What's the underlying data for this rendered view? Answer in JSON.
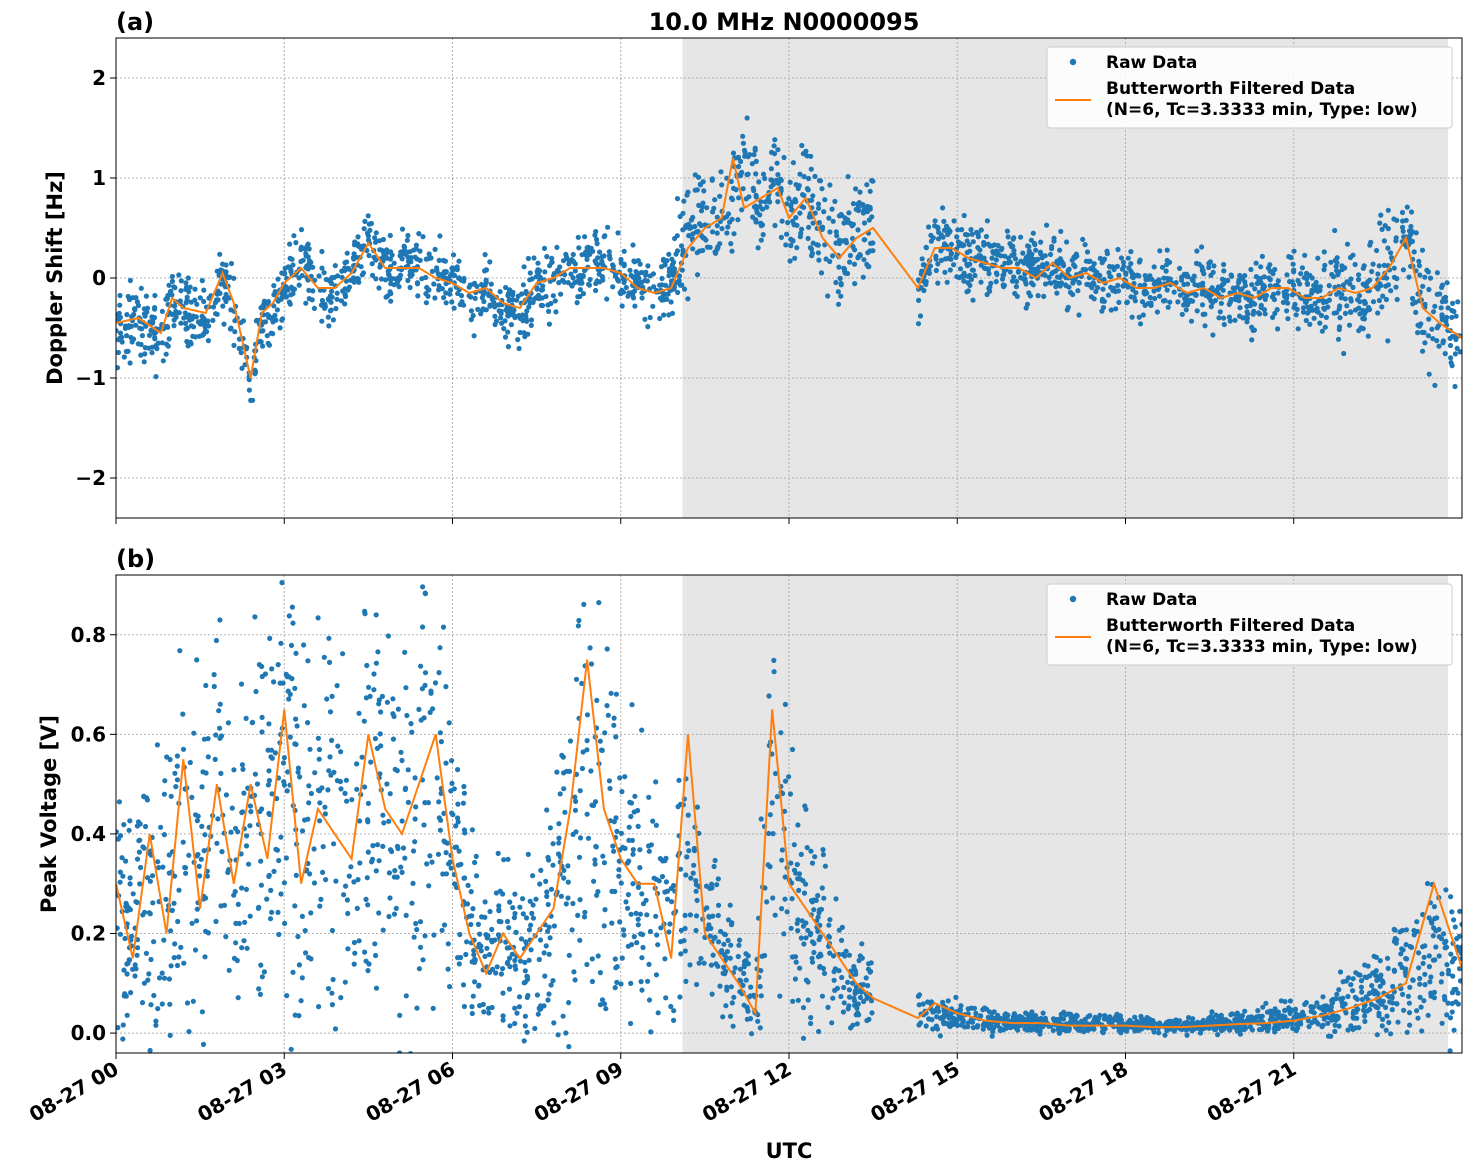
{
  "colors": {
    "raw": "#1f77b4",
    "filtered": "#ff7f0e",
    "shade": "#e6e6e6",
    "grid": "#b0b0b0"
  },
  "figure": {
    "title": "10.0 MHz N0000095",
    "xlabel": "UTC"
  },
  "x_ticks": [
    "08-27 00",
    "08-27 03",
    "08-27 06",
    "08-27 09",
    "08-27 12",
    "08-27 15",
    "08-27 18",
    "08-27 21"
  ],
  "chart_data": [
    {
      "type": "scatter",
      "panel_label": "(a)",
      "title": "10.0 MHz N0000095",
      "xlabel": "",
      "ylabel": "Doppler Shift [Hz]",
      "x_unit": "hours UTC on 08-27",
      "xlim": [
        0,
        24
      ],
      "ylim": [
        -2.4,
        2.4
      ],
      "y_ticks": [
        -2,
        -1,
        0,
        1,
        2
      ],
      "y_tick_labels": [
        "−2",
        "−1",
        "0",
        "1",
        "2"
      ],
      "grid": true,
      "legend_position": "top-right",
      "shaded_region": {
        "x_start": 10.1,
        "x_end": 23.75
      },
      "series": [
        {
          "name": "Raw Data",
          "kind": "points",
          "x": [
            0,
            0.4,
            0.8,
            1.0,
            1.2,
            1.6,
            1.9,
            2.1,
            2.4,
            2.6,
            2.8,
            3.0,
            3.3,
            3.6,
            3.9,
            4.2,
            4.5,
            4.8,
            5.1,
            5.4,
            5.7,
            6.0,
            6.3,
            6.6,
            6.9,
            7.2,
            7.5,
            7.8,
            8.1,
            8.4,
            8.7,
            9.0,
            9.3,
            9.6,
            9.9,
            10.2,
            10.5,
            10.8,
            11.0,
            11.2,
            11.5,
            11.8,
            12.0,
            12.3,
            12.6,
            12.9,
            13.2,
            13.5,
            14.3,
            14.6,
            14.9,
            15.2,
            15.5,
            15.8,
            16.1,
            16.4,
            16.7,
            17.0,
            17.3,
            17.6,
            17.9,
            18.2,
            18.5,
            18.8,
            19.1,
            19.4,
            19.7,
            20.0,
            20.3,
            20.6,
            20.9,
            21.2,
            21.5,
            21.8,
            22.1,
            22.4,
            22.7,
            23.0,
            23.3,
            23.6,
            24.0
          ],
          "y": [
            -0.5,
            -0.45,
            -0.6,
            -0.2,
            -0.3,
            -0.4,
            0.0,
            -0.3,
            -1.0,
            -0.4,
            -0.3,
            -0.1,
            0.1,
            -0.1,
            -0.15,
            0.05,
            0.35,
            0.1,
            0.15,
            0.1,
            0.0,
            -0.05,
            -0.2,
            -0.1,
            -0.3,
            -0.35,
            -0.1,
            0.0,
            0.15,
            0.1,
            0.15,
            0.05,
            -0.1,
            -0.15,
            0.0,
            0.4,
            0.6,
            0.5,
            0.8,
            1.2,
            0.75,
            0.9,
            0.6,
            0.8,
            0.5,
            0.2,
            0.5,
            0.55,
            -0.1,
            0.3,
            0.35,
            0.2,
            0.2,
            0.1,
            0.15,
            0.05,
            0.2,
            0.0,
            0.1,
            -0.05,
            0.0,
            -0.1,
            -0.1,
            -0.05,
            -0.15,
            -0.1,
            -0.2,
            -0.15,
            -0.2,
            -0.1,
            -0.1,
            -0.2,
            -0.25,
            -0.1,
            -0.2,
            -0.1,
            0.1,
            0.4,
            -0.3,
            -0.4,
            -0.6
          ]
        },
        {
          "name": "Butterworth Filtered Data\n(N=6, Tc=3.3333 min, Type: low)",
          "kind": "line",
          "x": [
            0,
            0.4,
            0.8,
            1.0,
            1.2,
            1.6,
            1.9,
            2.1,
            2.4,
            2.6,
            2.8,
            3.0,
            3.3,
            3.6,
            3.9,
            4.2,
            4.5,
            4.8,
            5.1,
            5.4,
            5.7,
            6.0,
            6.3,
            6.6,
            6.9,
            7.2,
            7.5,
            7.8,
            8.1,
            8.4,
            8.7,
            9.0,
            9.3,
            9.6,
            9.9,
            10.2,
            10.5,
            10.8,
            11.0,
            11.2,
            11.5,
            11.8,
            12.0,
            12.3,
            12.6,
            12.9,
            13.2,
            13.5,
            14.3,
            14.6,
            14.9,
            15.2,
            15.5,
            15.8,
            16.1,
            16.4,
            16.7,
            17.0,
            17.3,
            17.6,
            17.9,
            18.2,
            18.5,
            18.8,
            19.1,
            19.4,
            19.7,
            20.0,
            20.3,
            20.6,
            20.9,
            21.2,
            21.5,
            21.8,
            22.1,
            22.4,
            22.7,
            23.0,
            23.3,
            23.6,
            24.0
          ],
          "y": [
            -0.45,
            -0.4,
            -0.55,
            -0.2,
            -0.3,
            -0.35,
            0.05,
            -0.25,
            -1.0,
            -0.35,
            -0.25,
            -0.05,
            0.1,
            -0.1,
            -0.1,
            0.05,
            0.35,
            0.1,
            0.1,
            0.1,
            0.0,
            -0.05,
            -0.15,
            -0.1,
            -0.25,
            -0.3,
            -0.05,
            0.0,
            0.1,
            0.1,
            0.1,
            0.05,
            -0.1,
            -0.15,
            -0.1,
            0.3,
            0.5,
            0.6,
            1.2,
            0.7,
            0.8,
            0.9,
            0.6,
            0.8,
            0.4,
            0.2,
            0.4,
            0.5,
            -0.1,
            0.3,
            0.3,
            0.2,
            0.15,
            0.1,
            0.1,
            0.0,
            0.15,
            0.0,
            0.05,
            -0.05,
            0.0,
            -0.1,
            -0.1,
            -0.05,
            -0.15,
            -0.1,
            -0.2,
            -0.15,
            -0.2,
            -0.1,
            -0.1,
            -0.2,
            -0.2,
            -0.1,
            -0.15,
            -0.1,
            0.1,
            0.4,
            -0.3,
            -0.45,
            -0.6
          ]
        }
      ]
    },
    {
      "type": "scatter",
      "panel_label": "(b)",
      "xlabel": "UTC",
      "ylabel": "Peak Voltage [V]",
      "x_unit": "hours UTC on 08-27",
      "xlim": [
        0,
        24
      ],
      "ylim": [
        -0.04,
        0.92
      ],
      "y_ticks": [
        0.0,
        0.2,
        0.4,
        0.6,
        0.8
      ],
      "y_tick_labels": [
        "0.0",
        "0.2",
        "0.4",
        "0.6",
        "0.8"
      ],
      "grid": true,
      "legend_position": "top-right",
      "shaded_region": {
        "x_start": 10.1,
        "x_end": 23.75
      },
      "series": [
        {
          "name": "Raw Data",
          "kind": "points",
          "x": [
            0,
            0.3,
            0.6,
            0.9,
            1.2,
            1.5,
            1.8,
            2.1,
            2.4,
            2.7,
            3.0,
            3.3,
            3.6,
            3.9,
            4.2,
            4.5,
            4.8,
            5.1,
            5.4,
            5.7,
            6.0,
            6.3,
            6.6,
            6.9,
            7.2,
            7.5,
            7.8,
            8.1,
            8.4,
            8.7,
            9.0,
            9.3,
            9.6,
            9.9,
            10.2,
            10.5,
            10.8,
            11.1,
            11.4,
            11.7,
            12.0,
            12.3,
            12.6,
            12.9,
            13.2,
            13.5,
            14.3,
            14.6,
            15.0,
            15.5,
            16.0,
            16.5,
            17.0,
            17.5,
            18.0,
            18.5,
            19.0,
            19.5,
            20.0,
            20.5,
            21.0,
            21.5,
            22.0,
            22.5,
            23.0,
            23.5,
            24.0
          ],
          "y": [
            0.25,
            0.2,
            0.3,
            0.25,
            0.4,
            0.3,
            0.45,
            0.3,
            0.45,
            0.4,
            0.5,
            0.35,
            0.45,
            0.4,
            0.4,
            0.55,
            0.5,
            0.45,
            0.5,
            0.45,
            0.35,
            0.2,
            0.15,
            0.2,
            0.15,
            0.2,
            0.25,
            0.4,
            0.55,
            0.45,
            0.35,
            0.3,
            0.3,
            0.2,
            0.3,
            0.2,
            0.15,
            0.12,
            0.05,
            0.55,
            0.3,
            0.25,
            0.2,
            0.15,
            0.1,
            0.08,
            0.04,
            0.04,
            0.03,
            0.025,
            0.02,
            0.02,
            0.02,
            0.02,
            0.02,
            0.015,
            0.015,
            0.02,
            0.02,
            0.025,
            0.03,
            0.04,
            0.06,
            0.08,
            0.12,
            0.15,
            0.13
          ]
        },
        {
          "name": "Butterworth Filtered Data\n(N=6, Tc=3.3333 min, Type: low)",
          "kind": "line",
          "x": [
            0,
            0.3,
            0.6,
            0.9,
            1.2,
            1.5,
            1.8,
            2.1,
            2.4,
            2.7,
            3.0,
            3.3,
            3.6,
            3.9,
            4.2,
            4.5,
            4.8,
            5.1,
            5.4,
            5.7,
            6.0,
            6.3,
            6.6,
            6.9,
            7.2,
            7.5,
            7.8,
            8.1,
            8.4,
            8.7,
            9.0,
            9.3,
            9.6,
            9.9,
            10.2,
            10.5,
            10.8,
            11.1,
            11.4,
            11.7,
            12.0,
            12.3,
            12.6,
            12.9,
            13.2,
            13.5,
            14.3,
            14.6,
            15.0,
            15.5,
            16.0,
            16.5,
            17.0,
            17.5,
            18.0,
            18.5,
            19.0,
            19.5,
            20.0,
            20.5,
            21.0,
            21.5,
            22.0,
            22.5,
            23.0,
            23.5,
            24.0
          ],
          "y": [
            0.3,
            0.15,
            0.4,
            0.2,
            0.55,
            0.25,
            0.5,
            0.3,
            0.5,
            0.35,
            0.65,
            0.3,
            0.45,
            0.4,
            0.35,
            0.6,
            0.45,
            0.4,
            0.5,
            0.6,
            0.35,
            0.2,
            0.12,
            0.2,
            0.15,
            0.2,
            0.25,
            0.45,
            0.75,
            0.45,
            0.35,
            0.3,
            0.3,
            0.15,
            0.6,
            0.2,
            0.15,
            0.1,
            0.04,
            0.65,
            0.3,
            0.25,
            0.2,
            0.15,
            0.1,
            0.07,
            0.03,
            0.06,
            0.04,
            0.025,
            0.02,
            0.02,
            0.015,
            0.015,
            0.015,
            0.012,
            0.012,
            0.015,
            0.018,
            0.02,
            0.025,
            0.035,
            0.05,
            0.07,
            0.1,
            0.3,
            0.13
          ]
        }
      ]
    }
  ]
}
